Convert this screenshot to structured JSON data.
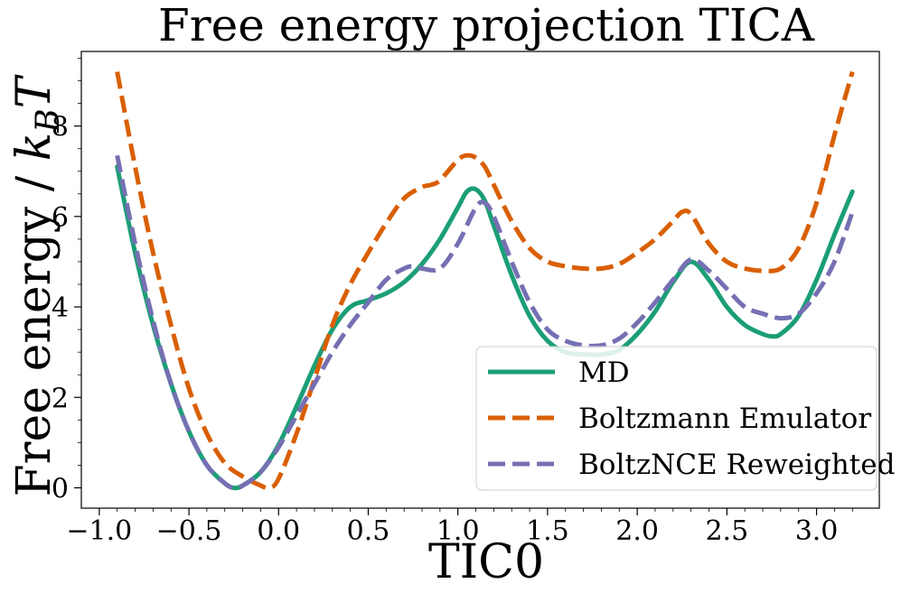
{
  "chart_data": {
    "type": "line",
    "title": "Free energy projection TICA",
    "xlabel": "TIC0",
    "ylabel": {
      "prefix": "Free energy / ",
      "k": "k",
      "sub": "B",
      "T": "T"
    },
    "xlim": [
      -1.1,
      3.35
    ],
    "ylim": [
      -0.45,
      9.65
    ],
    "xticks": [
      -1.0,
      -0.5,
      0.0,
      0.5,
      1.0,
      1.5,
      2.0,
      2.5,
      3.0
    ],
    "xtick_labels": [
      "−1.0",
      "−0.5",
      "0.0",
      "0.5",
      "1.0",
      "1.5",
      "2.0",
      "2.5",
      "3.0"
    ],
    "yticks": [
      0,
      2,
      4,
      6,
      8
    ],
    "ytick_labels": [
      "0",
      "2",
      "4",
      "6",
      "8"
    ],
    "grid": false,
    "legend_position": "bottom-right",
    "series": [
      {
        "name": "MD",
        "color": "#1b9e77",
        "style": "solid",
        "x": [
          -0.9,
          -0.8,
          -0.7,
          -0.6,
          -0.5,
          -0.4,
          -0.3,
          -0.25,
          -0.2,
          -0.1,
          0.0,
          0.1,
          0.2,
          0.3,
          0.4,
          0.5,
          0.6,
          0.7,
          0.8,
          0.9,
          1.0,
          1.05,
          1.1,
          1.15,
          1.2,
          1.3,
          1.4,
          1.5,
          1.6,
          1.7,
          1.8,
          1.9,
          2.0,
          2.1,
          2.2,
          2.3,
          2.4,
          2.5,
          2.6,
          2.7,
          2.75,
          2.8,
          2.9,
          3.0,
          3.1,
          3.2
        ],
        "y": [
          7.1,
          5.2,
          3.6,
          2.3,
          1.25,
          0.5,
          0.1,
          0.0,
          0.05,
          0.35,
          0.95,
          1.8,
          2.7,
          3.5,
          4.0,
          4.15,
          4.3,
          4.55,
          4.95,
          5.5,
          6.2,
          6.55,
          6.6,
          6.35,
          5.8,
          4.7,
          3.8,
          3.25,
          3.0,
          2.95,
          2.95,
          3.05,
          3.4,
          3.9,
          4.55,
          5.0,
          4.6,
          4.0,
          3.6,
          3.4,
          3.35,
          3.4,
          3.8,
          4.6,
          5.6,
          6.55
        ]
      },
      {
        "name": "Boltzmann Emulator",
        "color": "#d95f02",
        "style": "dashed",
        "x": [
          -0.9,
          -0.8,
          -0.7,
          -0.6,
          -0.5,
          -0.4,
          -0.3,
          -0.2,
          -0.1,
          -0.05,
          0.0,
          0.1,
          0.2,
          0.3,
          0.4,
          0.5,
          0.6,
          0.7,
          0.8,
          0.85,
          0.9,
          1.0,
          1.05,
          1.1,
          1.15,
          1.2,
          1.3,
          1.4,
          1.5,
          1.6,
          1.7,
          1.8,
          1.9,
          2.0,
          2.1,
          2.2,
          2.25,
          2.3,
          2.4,
          2.5,
          2.6,
          2.7,
          2.8,
          2.9,
          3.0,
          3.1,
          3.2
        ],
        "y": [
          9.2,
          7.1,
          5.2,
          3.6,
          2.2,
          1.2,
          0.55,
          0.25,
          0.05,
          0.0,
          0.2,
          1.2,
          2.4,
          3.6,
          4.5,
          5.2,
          5.85,
          6.4,
          6.65,
          6.7,
          6.8,
          7.25,
          7.35,
          7.3,
          7.1,
          6.7,
          5.9,
          5.3,
          5.0,
          4.9,
          4.85,
          4.85,
          4.95,
          5.2,
          5.5,
          5.9,
          6.1,
          6.05,
          5.4,
          5.0,
          4.85,
          4.8,
          4.85,
          5.3,
          6.3,
          7.8,
          9.2
        ]
      },
      {
        "name": "BoltzNCE Reweighted",
        "color": "#7570b3",
        "style": "dashed",
        "x": [
          -0.9,
          -0.8,
          -0.7,
          -0.6,
          -0.5,
          -0.4,
          -0.3,
          -0.25,
          -0.2,
          -0.1,
          0.0,
          0.1,
          0.2,
          0.3,
          0.4,
          0.5,
          0.6,
          0.7,
          0.75,
          0.8,
          0.9,
          1.0,
          1.1,
          1.15,
          1.2,
          1.3,
          1.4,
          1.5,
          1.6,
          1.7,
          1.8,
          1.9,
          2.0,
          2.1,
          2.2,
          2.3,
          2.4,
          2.5,
          2.6,
          2.7,
          2.8,
          2.9,
          3.0,
          3.1,
          3.2
        ],
        "y": [
          7.35,
          5.4,
          3.7,
          2.3,
          1.25,
          0.5,
          0.1,
          0.0,
          0.05,
          0.35,
          0.9,
          1.6,
          2.3,
          3.0,
          3.6,
          4.1,
          4.6,
          4.85,
          4.9,
          4.85,
          4.85,
          5.4,
          6.2,
          6.3,
          6.0,
          5.0,
          4.1,
          3.5,
          3.25,
          3.15,
          3.15,
          3.3,
          3.65,
          4.1,
          4.6,
          5.05,
          4.8,
          4.4,
          4.0,
          3.85,
          3.75,
          3.85,
          4.3,
          5.0,
          6.1
        ]
      }
    ]
  }
}
